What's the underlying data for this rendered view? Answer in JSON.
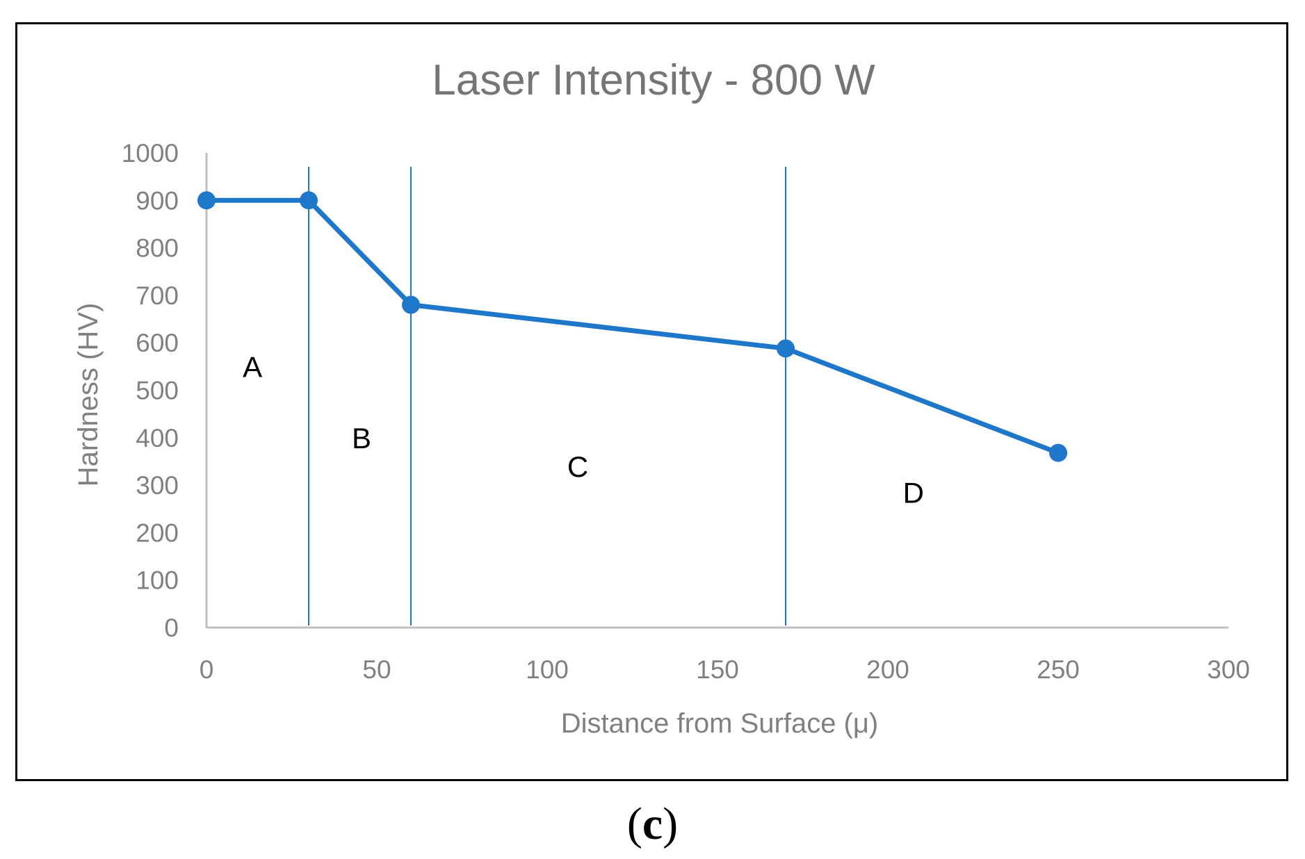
{
  "chart_data": {
    "type": "line",
    "title": "Laser Intensity - 800 W",
    "xlabel": "Distance from Surface (μ)",
    "ylabel": "Hardness (HV)",
    "xlim": [
      0,
      300
    ],
    "ylim": [
      0,
      1000
    ],
    "xticks": [
      0,
      50,
      100,
      150,
      200,
      250,
      300
    ],
    "yticks": [
      0,
      100,
      200,
      300,
      400,
      500,
      600,
      700,
      800,
      900,
      1000
    ],
    "grid": false,
    "series": [
      {
        "name": "Hardness",
        "x": [
          0,
          30,
          60,
          170,
          250
        ],
        "y": [
          900,
          900,
          680,
          588,
          368
        ]
      }
    ],
    "zone_boundaries_x": [
      30,
      60,
      170
    ],
    "zone_labels": [
      {
        "text": "A",
        "x": 13.5,
        "y": 550
      },
      {
        "text": "B",
        "x": 45.5,
        "y": 400
      },
      {
        "text": "C",
        "x": 109,
        "y": 340
      },
      {
        "text": "D",
        "x": 207.5,
        "y": 285
      }
    ],
    "colors": {
      "series": "#1f77c9",
      "axis": "#bfbfbf",
      "tick_text": "#808080",
      "title": "#757575",
      "zone_text": "#000000"
    }
  },
  "caption": {
    "open": "(",
    "letter": "c",
    "close": ")"
  }
}
